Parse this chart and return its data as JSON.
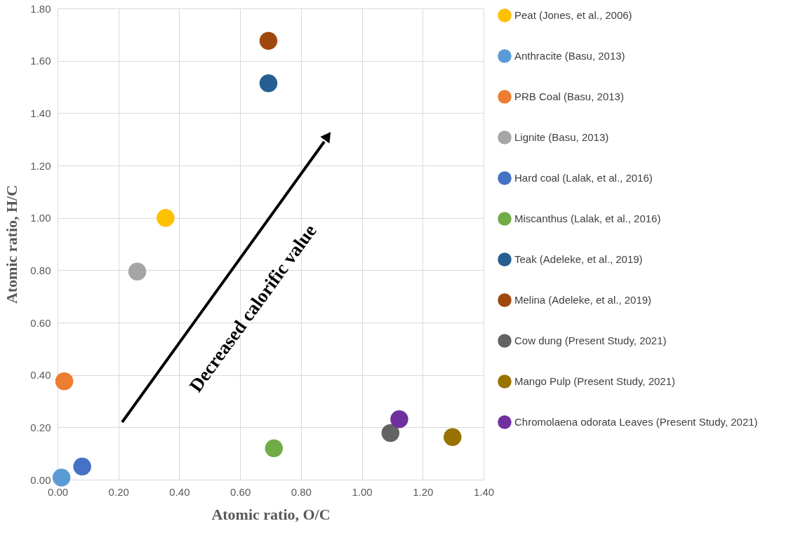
{
  "chart_data": {
    "type": "scatter",
    "xlabel": "Atomic ratio, O/C",
    "ylabel": "Atomic ratio, H/C",
    "annotations": [
      "Decreased calorific value"
    ],
    "xlim": [
      0,
      1.4
    ],
    "ylim": [
      0,
      1.8
    ],
    "xticks": [
      {
        "value": 0,
        "label": "0.00"
      },
      {
        "value": 0.2,
        "label": "0.20"
      },
      {
        "value": 0.4,
        "label": "0.40"
      },
      {
        "value": 0.6,
        "label": "0.60"
      },
      {
        "value": 0.8,
        "label": "0.80"
      },
      {
        "value": 1.0,
        "label": "1.00"
      },
      {
        "value": 1.2,
        "label": "1.20"
      },
      {
        "value": 1.4,
        "label": "1.40"
      }
    ],
    "yticks": [
      {
        "value": 0,
        "label": "0.00"
      },
      {
        "value": 0.2,
        "label": "0.20"
      },
      {
        "value": 0.4,
        "label": "0.40"
      },
      {
        "value": 0.6,
        "label": "0.60"
      },
      {
        "value": 0.8,
        "label": "0.80"
      },
      {
        "value": 1.0,
        "label": "1.00"
      },
      {
        "value": 1.2,
        "label": "1.20"
      },
      {
        "value": 1.4,
        "label": "1.40"
      },
      {
        "value": 1.6,
        "label": "1.60"
      },
      {
        "value": 1.8,
        "label": "1.80"
      }
    ],
    "grid": true,
    "legend": "right",
    "marker": "circle",
    "series": [
      {
        "name": "Peat (Jones, et al., 2006)",
        "color": "#ffc000",
        "x": [
          0.355
        ],
        "values": [
          1.0
        ]
      },
      {
        "name": "Anthracite (Basu, 2013)",
        "color": "#5b9bd5",
        "x": [
          0.013
        ],
        "values": [
          0.008
        ]
      },
      {
        "name": "PRB Coal (Basu, 2013)",
        "color": "#ed7d31",
        "x": [
          0.022
        ],
        "values": [
          0.376
        ]
      },
      {
        "name": "Lignite (Basu, 2013)",
        "color": "#a5a5a5",
        "x": [
          0.262
        ],
        "values": [
          0.795
        ]
      },
      {
        "name": "Hard coal (Lalak, et al., 2016)",
        "color": "#4472c4",
        "x": [
          0.081
        ],
        "values": [
          0.05
        ]
      },
      {
        "name": "Miscanthus  (Lalak, et al., 2016)",
        "color": "#70ad47",
        "x": [
          0.711
        ],
        "values": [
          0.12
        ]
      },
      {
        "name": "Teak (Adeleke, et al., 2019)",
        "color": "#255e91",
        "x": [
          0.693
        ],
        "values": [
          1.514
        ]
      },
      {
        "name": "Melina (Adeleke, et al., 2019)",
        "color": "#9e480e",
        "x": [
          0.693
        ],
        "values": [
          1.676
        ]
      },
      {
        "name": "Cow dung (Present Study, 2021)",
        "color": "#636363",
        "x": [
          1.094
        ],
        "values": [
          0.178
        ]
      },
      {
        "name": "Mango Pulp (Present Study, 2021)",
        "color": "#997300",
        "x": [
          1.298
        ],
        "values": [
          0.163
        ]
      },
      {
        "name": "Chromolaena odorata Leaves (Present Study, 2021)",
        "color": "#7030a0",
        "x": [
          1.123
        ],
        "values": [
          0.231
        ]
      }
    ]
  }
}
